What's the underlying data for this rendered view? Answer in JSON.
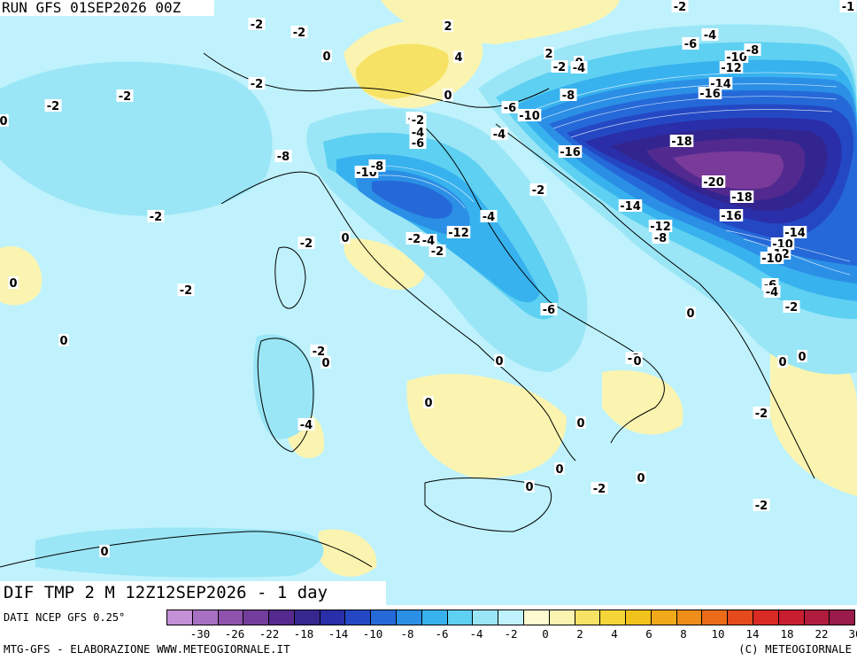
{
  "header": {
    "run_title": "RUN GFS 01SEP2026 00Z"
  },
  "field_title": "DIF TMP 2 M 12Z12SEP2026 - 1 day",
  "footer": {
    "source": "DATI NCEP GFS 0.25°",
    "credit_left": "MTG-GFS - ELABORAZIONE WWW.METEOGIORNALE.IT",
    "credit_right": "(C) METEOGIORNALE"
  },
  "colors": {
    "ocean_base": "#bff2fc",
    "zero_band": "#d9f8fb",
    "pos2": "#fbf4b0",
    "pos4": "#f6e365",
    "neg2": "#9ae6f6",
    "neg4": "#5ed0f2",
    "neg6": "#38b2ee",
    "neg8": "#2b8fe6",
    "neg10": "#2569d9",
    "neg12": "#2448c4",
    "neg14": "#2a2ea8",
    "neg16": "#33258f",
    "neg18": "#522a8f",
    "neg20": "#7a3a9a"
  },
  "colorbar": {
    "ticks": [
      "-30",
      "-26",
      "-22",
      "-18",
      "-14",
      "-10",
      "-8",
      "-6",
      "-4",
      "-2",
      "0",
      "2",
      "4",
      "6",
      "8",
      "10",
      "14",
      "18",
      "22",
      "30"
    ],
    "swatches": [
      "#c490d6",
      "#a870c2",
      "#8e52ad",
      "#733d9c",
      "#552a8e",
      "#37288f",
      "#2a2ea8",
      "#2448c4",
      "#2569d9",
      "#2b8fe6",
      "#38b2ee",
      "#5ed0f2",
      "#9ae6f6",
      "#bff2fc",
      "#fffad0",
      "#fbf4b0",
      "#f6e365",
      "#f5d63a",
      "#f2c21c",
      "#f0a91a",
      "#ee8d1a",
      "#ea6b18",
      "#e44a1c",
      "#d92a24",
      "#c81e30",
      "#b01c3e",
      "#9a1b4c"
    ]
  },
  "contour_labels": [
    "-2",
    "-2",
    "-2",
    "0",
    "-2",
    "2",
    "4",
    "-2",
    "-6",
    "-4",
    "-10",
    "-8",
    "-12",
    "-14",
    "-16",
    "-1",
    "2",
    "-2",
    "0",
    "-4",
    "-2",
    "-2",
    "0",
    "-8",
    "-6",
    "-10",
    "0",
    "-2",
    "-4",
    "-6",
    "-4",
    "-16",
    "-18",
    "-2",
    "-10",
    "-8",
    "-20",
    "-18",
    "-14",
    "-16",
    "-2",
    "-4",
    "-12",
    "-8",
    "-12",
    "-10",
    "-14",
    "-12",
    "-10",
    "-8",
    "0",
    "-2",
    "-2",
    "-4",
    "-2",
    "-6",
    "-4",
    "-6",
    "-2",
    "0",
    "0",
    "-2",
    "0",
    "0",
    "0",
    "-2",
    "0",
    "-4",
    "0",
    "-2",
    "0",
    "-2",
    "0",
    "0",
    "0",
    "0",
    "-2",
    "0",
    "-2",
    "0"
  ]
}
